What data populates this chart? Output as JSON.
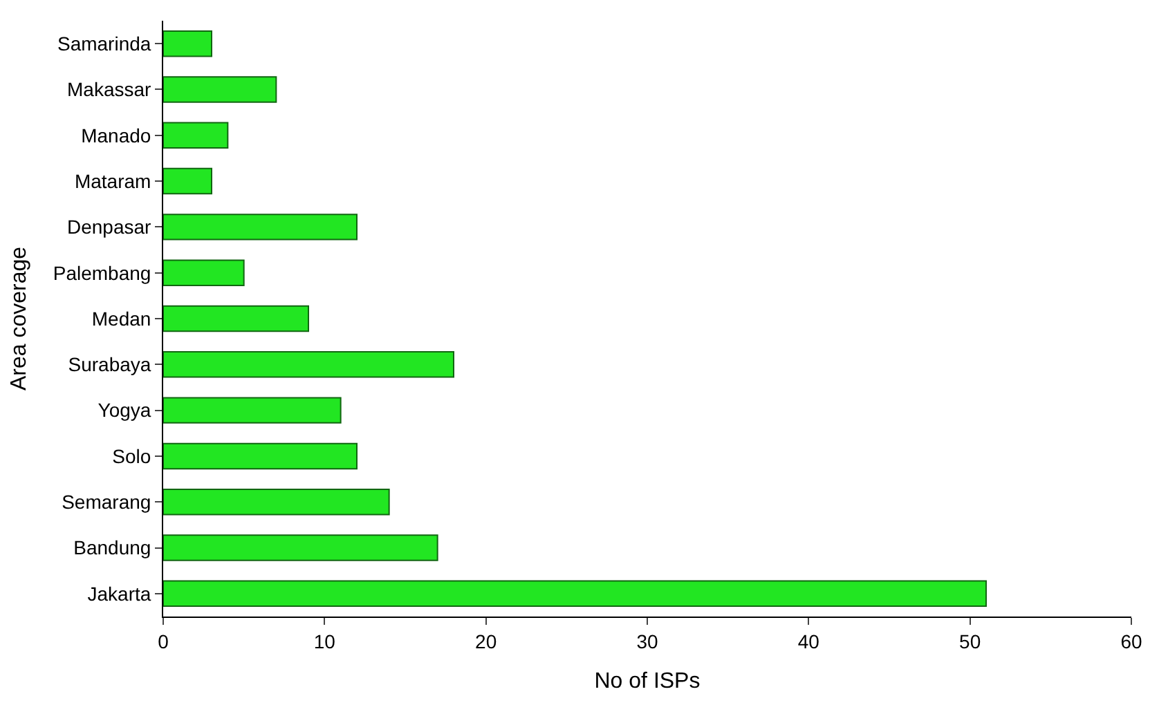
{
  "chart_data": {
    "type": "bar",
    "orientation": "horizontal",
    "xlabel": "No of ISPs",
    "ylabel": "Area coverage",
    "categories": [
      "Samarinda",
      "Makassar",
      "Manado",
      "Mataram",
      "Denpasar",
      "Palembang",
      "Medan",
      "Surabaya",
      "Yogya",
      "Solo",
      "Semarang",
      "Bandung",
      "Jakarta"
    ],
    "values": [
      3,
      7,
      4,
      3,
      12,
      5,
      9,
      18,
      11,
      12,
      14,
      17,
      51
    ],
    "color": "#22e622",
    "xlim": [
      0,
      60
    ],
    "xticks": [
      0,
      10,
      20,
      30,
      40,
      50,
      60
    ]
  }
}
